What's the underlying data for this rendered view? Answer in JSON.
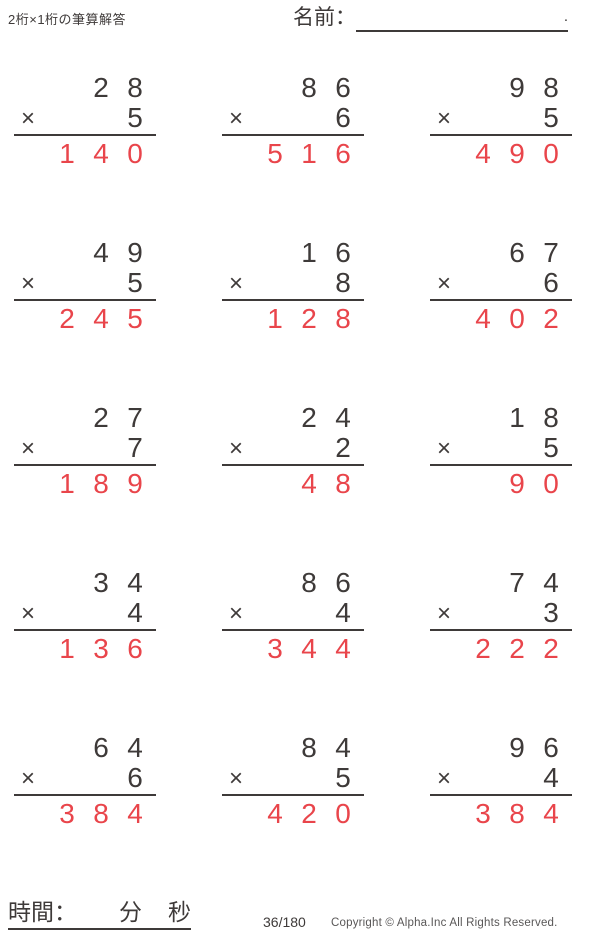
{
  "header": {
    "title": "2桁×1桁の筆算解答",
    "name_label": "名前：",
    "name_line_suffix": "."
  },
  "operator": "×",
  "problems": [
    {
      "multiplicand": "28",
      "multiplier": "5",
      "product": "140"
    },
    {
      "multiplicand": "86",
      "multiplier": "6",
      "product": "516"
    },
    {
      "multiplicand": "98",
      "multiplier": "5",
      "product": "490"
    },
    {
      "multiplicand": "49",
      "multiplier": "5",
      "product": "245"
    },
    {
      "multiplicand": "16",
      "multiplier": "8",
      "product": "128"
    },
    {
      "multiplicand": "67",
      "multiplier": "6",
      "product": "402"
    },
    {
      "multiplicand": "27",
      "multiplier": "7",
      "product": "189"
    },
    {
      "multiplicand": "24",
      "multiplier": "2",
      "product": "48"
    },
    {
      "multiplicand": "18",
      "multiplier": "5",
      "product": "90"
    },
    {
      "multiplicand": "34",
      "multiplier": "4",
      "product": "136"
    },
    {
      "multiplicand": "86",
      "multiplier": "4",
      "product": "344"
    },
    {
      "multiplicand": "74",
      "multiplier": "3",
      "product": "222"
    },
    {
      "multiplicand": "64",
      "multiplier": "6",
      "product": "384"
    },
    {
      "multiplicand": "84",
      "multiplier": "5",
      "product": "420"
    },
    {
      "multiplicand": "96",
      "multiplier": "4",
      "product": "384"
    }
  ],
  "footer": {
    "time_label": "時間：",
    "minutes_label": "分",
    "seconds_label": "秒",
    "page": "36/180",
    "copyright": "Copyright © Alpha.Inc All Rights Reserved."
  },
  "colors": {
    "ink": "#3e3a39",
    "answer_red": "#e9454b"
  }
}
